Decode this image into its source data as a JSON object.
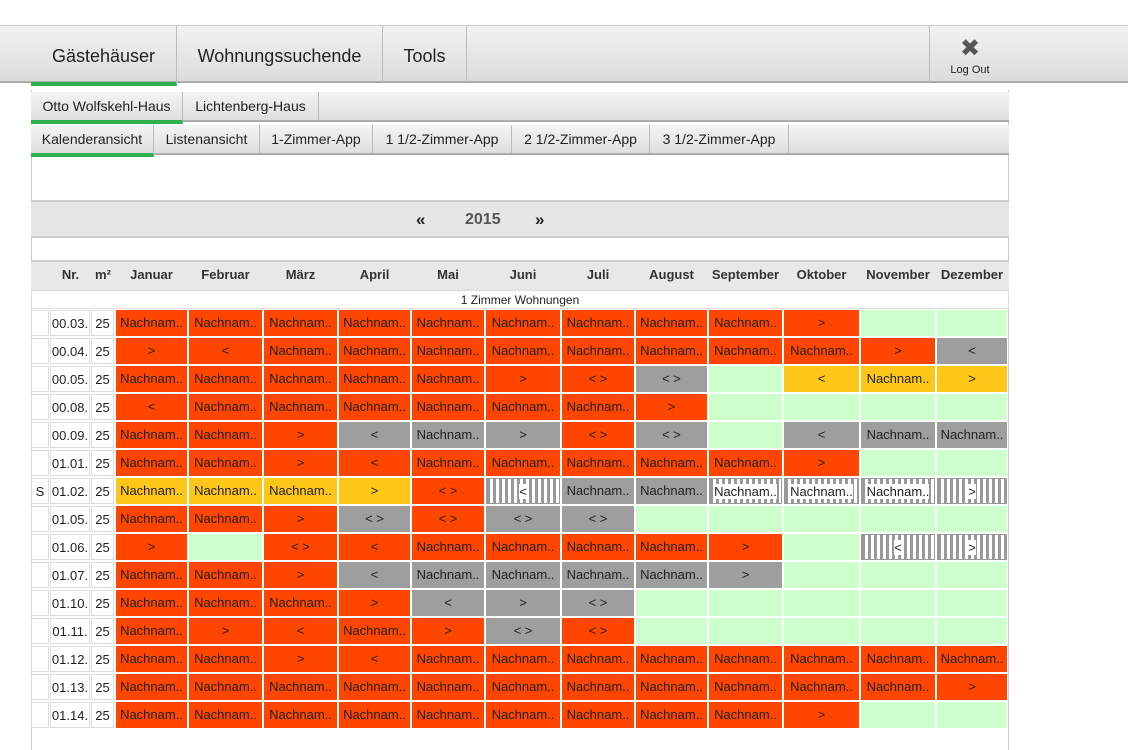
{
  "nav": {
    "tabs": [
      "Gästehäuser",
      "Wohnungssuchende",
      "Tools"
    ],
    "logout": "Log Out"
  },
  "houses": [
    "Otto Wolfskehl-Haus",
    "Lichtenberg-Haus"
  ],
  "views": [
    "Kalenderansicht",
    "Listenansicht",
    "1-Zimmer-App",
    "1 1/2-Zimmer-App",
    "2 1/2-Zimmer-App",
    "3 1/2-Zimmer-App"
  ],
  "year_nav": {
    "prev": "«",
    "year": "2015",
    "next": "»"
  },
  "table": {
    "columns": [
      "Nr.",
      "m²",
      "Januar",
      "Februar",
      "März",
      "April",
      "Mai",
      "Juni",
      "Juli",
      "August",
      "September",
      "Oktober",
      "November",
      "Dezember"
    ],
    "group": "1 Zimmer Wohnungen",
    "rows": [
      {
        "nr": "00.03.",
        "m2": 25,
        "cells": [
          {
            "text": "Nachnam..",
            "color": "#ff4500"
          },
          {
            "text": "Nachnam..",
            "color": "#ff4500"
          },
          {
            "text": "Nachnam..",
            "color": "#ff4500"
          },
          {
            "text": "Nachnam..",
            "color": "#ff4500"
          },
          {
            "text": "Nachnam..",
            "color": "#ff4500"
          },
          {
            "text": "Nachnam..",
            "color": "#ff4500"
          },
          {
            "text": "Nachnam..",
            "color": "#ff4500"
          },
          {
            "text": "Nachnam..",
            "color": "#ff4500"
          },
          {
            "text": "Nachnam..",
            "color": "#ff4500"
          },
          {
            "text": ">",
            "color": "#ff4500"
          },
          {
            "color": "#ccffcc"
          },
          {
            "color": "#ccffcc"
          }
        ]
      },
      {
        "nr": "00.04.",
        "m2": 25,
        "cells": [
          {
            "text": ">",
            "color": "#ff4500"
          },
          {
            "text": "<",
            "color": "#ff4500"
          },
          {
            "text": "Nachnam..",
            "color": "#ff4500"
          },
          {
            "text": "Nachnam..",
            "color": "#ff4500"
          },
          {
            "text": "Nachnam..",
            "color": "#ff4500"
          },
          {
            "text": "Nachnam..",
            "color": "#ff4500"
          },
          {
            "text": "Nachnam..",
            "color": "#ff4500"
          },
          {
            "text": "Nachnam..",
            "color": "#ff4500"
          },
          {
            "text": "Nachnam..",
            "color": "#ff4500"
          },
          {
            "text": "Nachnam..",
            "color": "#ff4500"
          },
          {
            "text": ">",
            "color": "#ff4500"
          },
          {
            "text": "<",
            "color": "#9e9e9e"
          }
        ]
      },
      {
        "nr": "00.05.",
        "m2": 25,
        "cells": [
          {
            "text": "Nachnam..",
            "color": "#ff4500"
          },
          {
            "text": "Nachnam..",
            "color": "#ff4500"
          },
          {
            "text": "Nachnam..",
            "color": "#ff4500"
          },
          {
            "text": "Nachnam..",
            "color": "#ff4500"
          },
          {
            "text": "Nachnam..",
            "color": "#ff4500"
          },
          {
            "text": ">",
            "color": "#ff4500"
          },
          {
            "text": "< >",
            "color": "#ff4500"
          },
          {
            "text": "< >",
            "color": "#9e9e9e"
          },
          {
            "color": "#ccffcc"
          },
          {
            "text": "<",
            "color": "#ffc61a"
          },
          {
            "text": "Nachnam..",
            "color": "#ffc61a"
          },
          {
            "text": ">",
            "color": "#ffc61a"
          }
        ]
      },
      {
        "nr": "00.08.",
        "m2": 25,
        "cells": [
          {
            "text": "<",
            "color": "#ff4500"
          },
          {
            "text": "Nachnam..",
            "color": "#ff4500"
          },
          {
            "text": "Nachnam..",
            "color": "#ff4500"
          },
          {
            "text": "Nachnam..",
            "color": "#ff4500"
          },
          {
            "text": "Nachnam..",
            "color": "#ff4500"
          },
          {
            "text": "Nachnam..",
            "color": "#ff4500"
          },
          {
            "text": "Nachnam..",
            "color": "#ff4500"
          },
          {
            "text": ">",
            "color": "#ff4500"
          },
          {
            "color": "#ccffcc"
          },
          {
            "color": "#ccffcc"
          },
          {
            "color": "#ccffcc"
          },
          {
            "color": "#ccffcc"
          }
        ]
      },
      {
        "nr": "00.09.",
        "m2": 25,
        "cells": [
          {
            "text": "Nachnam..",
            "color": "#ff4500"
          },
          {
            "text": "Nachnam..",
            "color": "#ff4500"
          },
          {
            "text": ">",
            "color": "#ff4500"
          },
          {
            "text": "<",
            "color": "#9e9e9e"
          },
          {
            "text": "Nachnam..",
            "color": "#9e9e9e"
          },
          {
            "text": ">",
            "color": "#9e9e9e"
          },
          {
            "text": "< >",
            "color": "#ff4500"
          },
          {
            "text": "< >",
            "color": "#9e9e9e"
          },
          {
            "color": "#ccffcc"
          },
          {
            "text": "<",
            "color": "#9e9e9e"
          },
          {
            "text": "Nachnam..",
            "color": "#9e9e9e"
          },
          {
            "text": "Nachnam..",
            "color": "#9e9e9e"
          }
        ]
      },
      {
        "nr": "01.01.",
        "m2": 25,
        "cells": [
          {
            "text": "Nachnam..",
            "color": "#ff4500"
          },
          {
            "text": "Nachnam..",
            "color": "#ff4500"
          },
          {
            "text": ">",
            "color": "#ff4500"
          },
          {
            "text": "<",
            "color": "#ff4500"
          },
          {
            "text": "Nachnam..",
            "color": "#ff4500"
          },
          {
            "text": "Nachnam..",
            "color": "#ff4500"
          },
          {
            "text": "Nachnam..",
            "color": "#ff4500"
          },
          {
            "text": "Nachnam..",
            "color": "#ff4500"
          },
          {
            "text": "Nachnam..",
            "color": "#ff4500"
          },
          {
            "text": ">",
            "color": "#ff4500"
          },
          {
            "color": "#ccffcc"
          },
          {
            "color": "#ccffcc"
          }
        ]
      },
      {
        "marker": "S",
        "nr": "01.02.",
        "m2": 25,
        "cells": [
          {
            "text": "Nachnam..",
            "color": "#ffc61a"
          },
          {
            "text": "Nachnam..",
            "color": "#ffc61a"
          },
          {
            "text": "Nachnam..",
            "color": "#ffc61a"
          },
          {
            "text": ">",
            "color": "#ffc61a"
          },
          {
            "text": "< >",
            "color": "#ff4500"
          },
          {
            "text": "<",
            "pattern": "striped"
          },
          {
            "text": "Nachnam..",
            "color": "#9e9e9e"
          },
          {
            "text": "Nachnam..",
            "color": "#9e9e9e"
          },
          {
            "text": "Nachnam..",
            "pattern": "striped"
          },
          {
            "text": "Nachnam..",
            "pattern": "striped"
          },
          {
            "text": "Nachnam..",
            "pattern": "striped"
          },
          {
            "text": ">",
            "pattern": "striped"
          }
        ]
      },
      {
        "nr": "01.05.",
        "m2": 25,
        "cells": [
          {
            "text": "Nachnam..",
            "color": "#ff4500"
          },
          {
            "text": "Nachnam..",
            "color": "#ff4500"
          },
          {
            "text": ">",
            "color": "#ff4500"
          },
          {
            "text": "< >",
            "color": "#9e9e9e"
          },
          {
            "text": "< >",
            "color": "#ff4500"
          },
          {
            "text": "< >",
            "color": "#9e9e9e"
          },
          {
            "text": "< >",
            "color": "#9e9e9e"
          },
          {
            "color": "#ccffcc"
          },
          {
            "color": "#ccffcc"
          },
          {
            "color": "#ccffcc"
          },
          {
            "color": "#ccffcc"
          },
          {
            "color": "#ccffcc"
          }
        ]
      },
      {
        "nr": "01.06.",
        "m2": 25,
        "cells": [
          {
            "text": ">",
            "color": "#ff4500"
          },
          {
            "color": "#ccffcc"
          },
          {
            "text": "< >",
            "color": "#ff4500"
          },
          {
            "text": "<",
            "color": "#ff4500"
          },
          {
            "text": "Nachnam..",
            "color": "#ff4500"
          },
          {
            "text": "Nachnam..",
            "color": "#ff4500"
          },
          {
            "text": "Nachnam..",
            "color": "#ff4500"
          },
          {
            "text": "Nachnam..",
            "color": "#ff4500"
          },
          {
            "text": ">",
            "color": "#ff4500"
          },
          {
            "color": "#ccffcc"
          },
          {
            "text": "<",
            "pattern": "striped"
          },
          {
            "text": ">",
            "pattern": "striped"
          }
        ]
      },
      {
        "nr": "01.07.",
        "m2": 25,
        "cells": [
          {
            "text": "Nachnam..",
            "color": "#ff4500"
          },
          {
            "text": "Nachnam..",
            "color": "#ff4500"
          },
          {
            "text": ">",
            "color": "#ff4500"
          },
          {
            "text": "<",
            "color": "#9e9e9e"
          },
          {
            "text": "Nachnam..",
            "color": "#9e9e9e"
          },
          {
            "text": "Nachnam..",
            "color": "#9e9e9e"
          },
          {
            "text": "Nachnam..",
            "color": "#9e9e9e"
          },
          {
            "text": "Nachnam..",
            "color": "#9e9e9e"
          },
          {
            "text": ">",
            "color": "#9e9e9e"
          },
          {
            "color": "#ccffcc"
          },
          {
            "color": "#ccffcc"
          },
          {
            "color": "#ccffcc"
          }
        ]
      },
      {
        "nr": "01.10.",
        "m2": 25,
        "cells": [
          {
            "text": "Nachnam..",
            "color": "#ff4500"
          },
          {
            "text": "Nachnam..",
            "color": "#ff4500"
          },
          {
            "text": "Nachnam..",
            "color": "#ff4500"
          },
          {
            "text": ">",
            "color": "#ff4500"
          },
          {
            "text": "<",
            "color": "#9e9e9e"
          },
          {
            "text": ">",
            "color": "#9e9e9e"
          },
          {
            "text": "< >",
            "color": "#9e9e9e"
          },
          {
            "color": "#ccffcc"
          },
          {
            "color": "#ccffcc"
          },
          {
            "color": "#ccffcc"
          },
          {
            "color": "#ccffcc"
          },
          {
            "color": "#ccffcc"
          }
        ]
      },
      {
        "nr": "01.11.",
        "m2": 25,
        "cells": [
          {
            "text": "Nachnam..",
            "color": "#ff4500"
          },
          {
            "text": ">",
            "color": "#ff4500"
          },
          {
            "text": "<",
            "color": "#ff4500"
          },
          {
            "text": "Nachnam..",
            "color": "#ff4500"
          },
          {
            "text": ">",
            "color": "#ff4500"
          },
          {
            "text": "< >",
            "color": "#9e9e9e"
          },
          {
            "text": "< >",
            "color": "#ff4500"
          },
          {
            "color": "#ccffcc"
          },
          {
            "color": "#ccffcc"
          },
          {
            "color": "#ccffcc"
          },
          {
            "color": "#ccffcc"
          },
          {
            "color": "#ccffcc"
          }
        ]
      },
      {
        "nr": "01.12.",
        "m2": 25,
        "cells": [
          {
            "text": "Nachnam..",
            "color": "#ff4500"
          },
          {
            "text": "Nachnam..",
            "color": "#ff4500"
          },
          {
            "text": ">",
            "color": "#ff4500"
          },
          {
            "text": "<",
            "color": "#ff4500"
          },
          {
            "text": "Nachnam..",
            "color": "#ff4500"
          },
          {
            "text": "Nachnam..",
            "color": "#ff4500"
          },
          {
            "text": "Nachnam..",
            "color": "#ff4500"
          },
          {
            "text": "Nachnam..",
            "color": "#ff4500"
          },
          {
            "text": "Nachnam..",
            "color": "#ff4500"
          },
          {
            "text": "Nachnam..",
            "color": "#ff4500"
          },
          {
            "text": "Nachnam..",
            "color": "#ff4500"
          },
          {
            "text": "Nachnam..",
            "color": "#ff4500"
          }
        ]
      },
      {
        "nr": "01.13.",
        "m2": 25,
        "cells": [
          {
            "text": "Nachnam..",
            "color": "#ff4500"
          },
          {
            "text": "Nachnam..",
            "color": "#ff4500"
          },
          {
            "text": "Nachnam..",
            "color": "#ff4500"
          },
          {
            "text": "Nachnam..",
            "color": "#ff4500"
          },
          {
            "text": "Nachnam..",
            "color": "#ff4500"
          },
          {
            "text": "Nachnam..",
            "color": "#ff4500"
          },
          {
            "text": "Nachnam..",
            "color": "#ff4500"
          },
          {
            "text": "Nachnam..",
            "color": "#ff4500"
          },
          {
            "text": "Nachnam..",
            "color": "#ff4500"
          },
          {
            "text": "Nachnam..",
            "color": "#ff4500"
          },
          {
            "text": "Nachnam..",
            "color": "#ff4500"
          },
          {
            "text": ">",
            "color": "#ff4500"
          }
        ]
      },
      {
        "nr": "01.14.",
        "m2": 25,
        "cells": [
          {
            "text": "Nachnam..",
            "color": "#ff4500"
          },
          {
            "text": "Nachnam..",
            "color": "#ff4500"
          },
          {
            "text": "Nachnam..",
            "color": "#ff4500"
          },
          {
            "text": "Nachnam..",
            "color": "#ff4500"
          },
          {
            "text": "Nachnam..",
            "color": "#ff4500"
          },
          {
            "text": "Nachnam..",
            "color": "#ff4500"
          },
          {
            "text": "Nachnam..",
            "color": "#ff4500"
          },
          {
            "text": "Nachnam..",
            "color": "#ff4500"
          },
          {
            "text": "Nachnam..",
            "color": "#ff4500"
          },
          {
            "text": ">",
            "color": "#ff4500"
          },
          {
            "color": "#ccffcc"
          },
          {
            "color": "#ccffcc"
          }
        ]
      }
    ]
  }
}
